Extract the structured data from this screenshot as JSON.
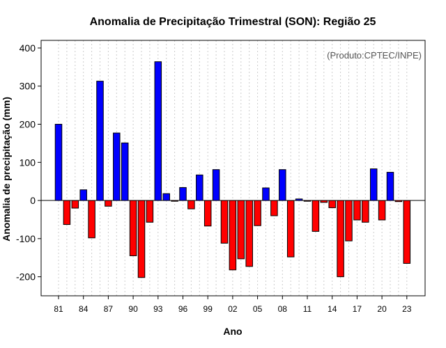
{
  "chart_data": {
    "type": "bar",
    "title": "Anomalia de Precipitação Trimestral (SON): Região 25",
    "xlabel": "Ano",
    "ylabel": "Anomalia de precipitação (mm)",
    "annotation": "(Produto:CPTEC/INPE)",
    "ylim": [
      -250,
      420
    ],
    "yticks": [
      -200,
      -100,
      0,
      100,
      200,
      300,
      400
    ],
    "grid": "vertical dotted",
    "positive_color": "#0000ff",
    "negative_color": "#ff0000",
    "years": [
      1981,
      1982,
      1983,
      1984,
      1985,
      1986,
      1987,
      1988,
      1989,
      1990,
      1991,
      1992,
      1993,
      1994,
      1995,
      1996,
      1997,
      1998,
      1999,
      2000,
      2001,
      2002,
      2003,
      2004,
      2005,
      2006,
      2007,
      2008,
      2009,
      2010,
      2011,
      2012,
      2013,
      2014,
      2015,
      2016,
      2017,
      2018,
      2019,
      2020,
      2021,
      2022,
      2023
    ],
    "values": [
      200,
      -63,
      -20,
      28,
      -98,
      313,
      -15,
      177,
      151,
      -145,
      -202,
      -57,
      364,
      18,
      -2,
      34,
      -22,
      67,
      -67,
      81,
      -112,
      -182,
      -153,
      -173,
      -66,
      33,
      -40,
      81,
      -148,
      4,
      -2,
      -81,
      -5,
      -19,
      -200,
      -106,
      -51,
      -57,
      83,
      -51,
      74,
      -3,
      -165
    ],
    "tick_labels": [
      "81",
      "84",
      "87",
      "90",
      "93",
      "96",
      "99",
      "02",
      "05",
      "08",
      "11",
      "14",
      "17",
      "20",
      "23"
    ],
    "tick_years": [
      1981,
      1984,
      1987,
      1990,
      1993,
      1996,
      1999,
      2002,
      2005,
      2008,
      2011,
      2014,
      2017,
      2020,
      2023
    ]
  }
}
